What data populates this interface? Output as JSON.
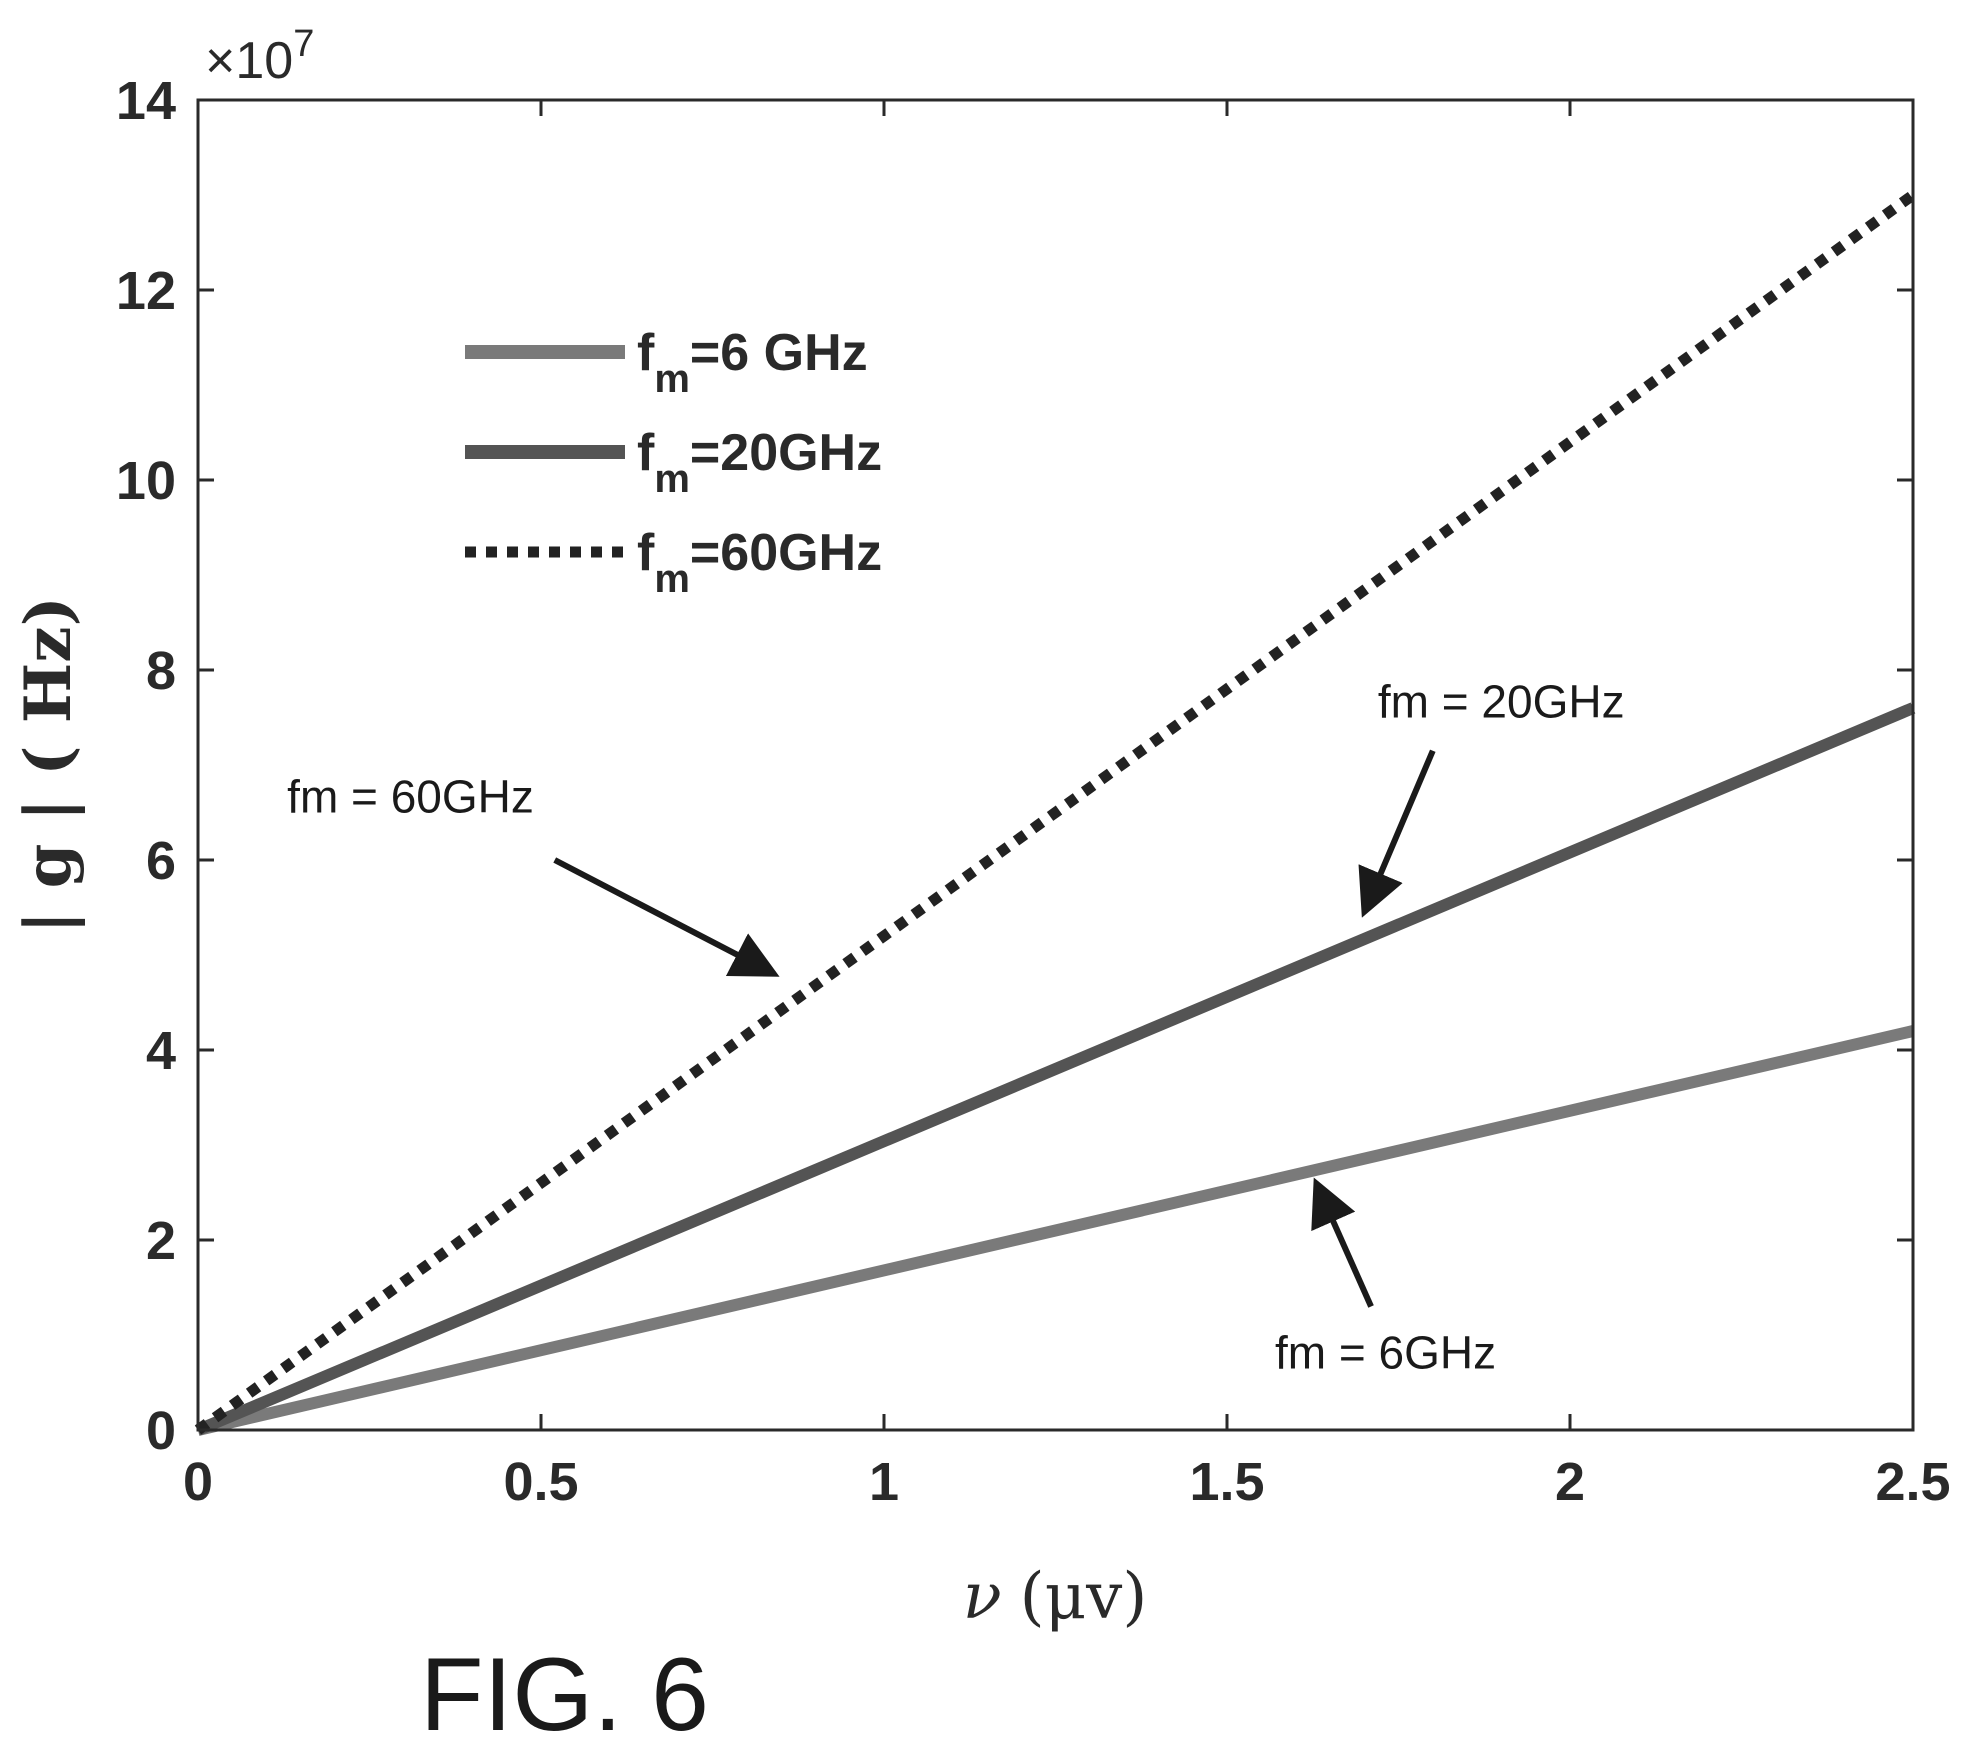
{
  "figure_caption": "FIG. 6",
  "chart_data": {
    "type": "line",
    "xlabel_var": "ν",
    "xlabel_unit": "(μv)",
    "ylabel": "| g |  ( Hz)",
    "y_multiplier_base": "×10",
    "y_multiplier_exp": "7",
    "xlim": [
      0,
      2.5
    ],
    "ylim": [
      0,
      14
    ],
    "x_ticks": [
      0,
      0.5,
      1,
      1.5,
      2,
      2.5
    ],
    "x_tick_labels": [
      "0",
      "0.5",
      "1",
      "1.5",
      "2",
      "2.5"
    ],
    "y_ticks": [
      0,
      2,
      4,
      6,
      8,
      10,
      12,
      14
    ],
    "y_tick_labels": [
      "0",
      "2",
      "4",
      "6",
      "8",
      "10",
      "12",
      "14"
    ],
    "grid": false,
    "legend_placement": "upper-left",
    "series": [
      {
        "name": "f_m=6 GHz",
        "name_main": "f",
        "name_sub": "m",
        "name_rest": "=6 GHz",
        "style": "solid",
        "color": "#7a7a7a",
        "x": [
          0,
          2.5
        ],
        "y": [
          0,
          4.2
        ]
      },
      {
        "name": "f_m=20GHz",
        "name_main": "f",
        "name_sub": "m",
        "name_rest": "=20GHz",
        "style": "solid",
        "color": "#545454",
        "x": [
          0,
          2.5
        ],
        "y": [
          0,
          7.6
        ]
      },
      {
        "name": "f_m=60GHz",
        "name_main": "f",
        "name_sub": "m",
        "name_rest": "=60GHz",
        "style": "dotted",
        "color": "#222222",
        "x": [
          0,
          2.5
        ],
        "y": [
          0,
          13
        ]
      }
    ],
    "annotations": [
      {
        "text": "fm = 60GHz",
        "text_x": 0.13,
        "text_y": 6.5,
        "arrow_from": [
          0.52,
          6.0
        ],
        "arrow_to": [
          0.84,
          4.8
        ]
      },
      {
        "text": "fm = 20GHz",
        "text_x": 1.72,
        "text_y": 7.5,
        "arrow_from": [
          1.8,
          7.15
        ],
        "arrow_to": [
          1.7,
          5.45
        ]
      },
      {
        "text": "fm = 6GHz",
        "text_x": 1.57,
        "text_y": 0.65,
        "arrow_from": [
          1.71,
          1.3
        ],
        "arrow_to": [
          1.63,
          2.6
        ]
      }
    ]
  }
}
